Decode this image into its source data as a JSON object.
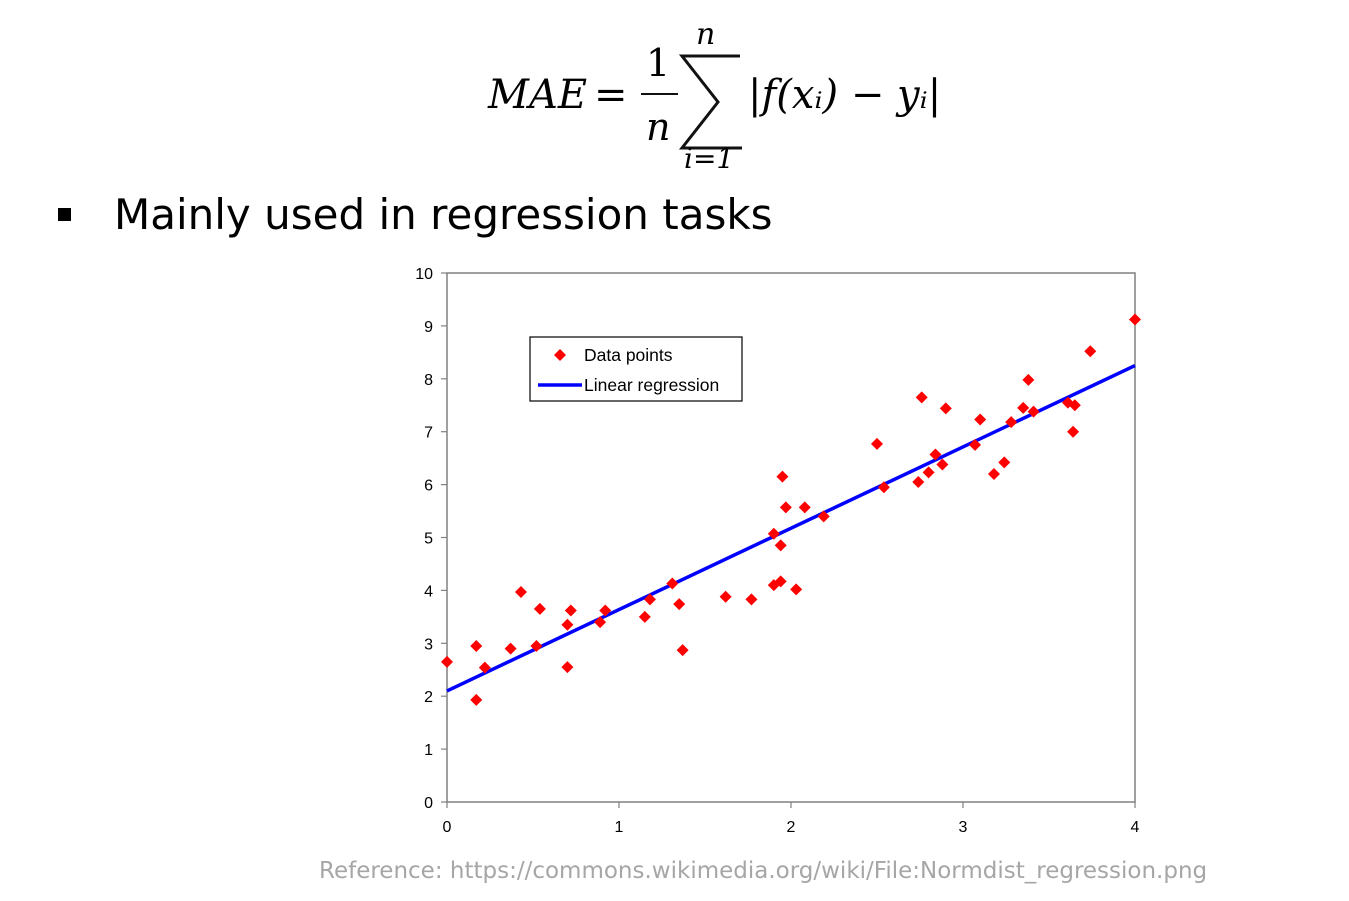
{
  "formula": {
    "lhs": "MAE",
    "equals": "=",
    "numerator": "1",
    "denominator": "n",
    "sum_upper": "n",
    "sum_lower": "i=1",
    "body": "|f(xᵢ) − yᵢ|"
  },
  "bullet": {
    "text": "Mainly used in regression tasks"
  },
  "reference": {
    "text": "Reference: https://commons.wikimedia.org/wiki/File:Normdist_regression.png"
  },
  "colors": {
    "points": "#ff0000",
    "line": "#0000ff",
    "axes": "#808080",
    "reference_text": "#a6a6a6"
  },
  "chart_data": {
    "type": "scatter",
    "xlim": [
      0,
      4
    ],
    "ylim": [
      0,
      10
    ],
    "x_ticks": [
      0,
      1,
      2,
      3,
      4
    ],
    "y_ticks": [
      0,
      1,
      2,
      3,
      4,
      5,
      6,
      7,
      8,
      9,
      10
    ],
    "grid": false,
    "legend_position": "top-left",
    "series": [
      {
        "name": "Data points",
        "kind": "scatter",
        "marker": "diamond",
        "points": [
          [
            0.0,
            2.65
          ],
          [
            0.17,
            1.93
          ],
          [
            0.17,
            2.95
          ],
          [
            0.22,
            2.54
          ],
          [
            0.37,
            2.9
          ],
          [
            0.43,
            3.97
          ],
          [
            0.52,
            2.95
          ],
          [
            0.54,
            3.65
          ],
          [
            0.7,
            2.55
          ],
          [
            0.7,
            3.35
          ],
          [
            0.72,
            3.62
          ],
          [
            0.89,
            3.4
          ],
          [
            0.92,
            3.62
          ],
          [
            1.15,
            3.5
          ],
          [
            1.18,
            3.83
          ],
          [
            1.31,
            4.13
          ],
          [
            1.35,
            3.74
          ],
          [
            1.37,
            2.87
          ],
          [
            1.62,
            3.88
          ],
          [
            1.77,
            3.83
          ],
          [
            1.9,
            5.07
          ],
          [
            1.9,
            4.1
          ],
          [
            1.94,
            4.17
          ],
          [
            1.94,
            4.85
          ],
          [
            1.95,
            6.15
          ],
          [
            1.97,
            5.57
          ],
          [
            2.03,
            4.02
          ],
          [
            2.08,
            5.57
          ],
          [
            2.19,
            5.4
          ],
          [
            2.5,
            6.77
          ],
          [
            2.54,
            5.95
          ],
          [
            2.74,
            6.05
          ],
          [
            2.76,
            7.65
          ],
          [
            2.8,
            6.23
          ],
          [
            2.84,
            6.57
          ],
          [
            2.88,
            6.38
          ],
          [
            2.9,
            7.44
          ],
          [
            3.07,
            6.75
          ],
          [
            3.1,
            7.23
          ],
          [
            3.18,
            6.2
          ],
          [
            3.24,
            6.42
          ],
          [
            3.28,
            7.18
          ],
          [
            3.35,
            7.45
          ],
          [
            3.38,
            7.98
          ],
          [
            3.41,
            7.38
          ],
          [
            3.61,
            7.55
          ],
          [
            3.64,
            7.0
          ],
          [
            3.65,
            7.5
          ],
          [
            3.74,
            8.52
          ],
          [
            4.0,
            9.12
          ]
        ]
      },
      {
        "name": "Linear regression",
        "kind": "line",
        "points": [
          [
            0,
            2.1
          ],
          [
            4,
            8.25
          ]
        ]
      }
    ]
  }
}
